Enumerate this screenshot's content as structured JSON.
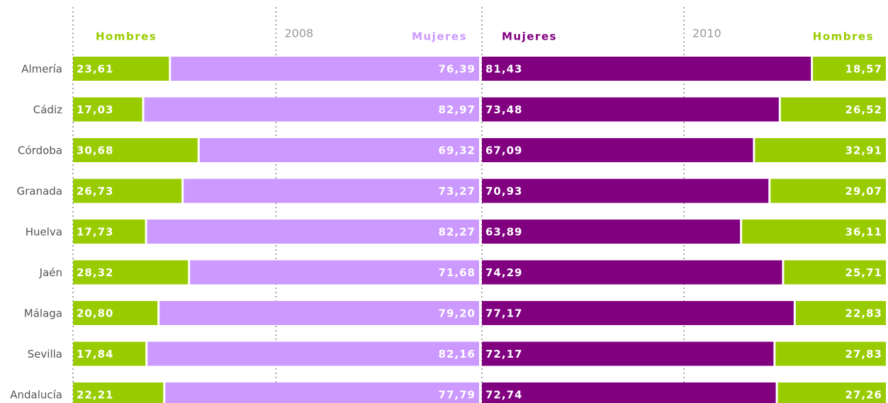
{
  "chart_data": {
    "type": "bar",
    "stacked": true,
    "categories": [
      "Almería",
      "Cádiz",
      "Córdoba",
      "Granada",
      "Huelva",
      "Jaén",
      "Málaga",
      "Sevilla",
      "Andalucía"
    ],
    "xlim": [
      0,
      100
    ],
    "xticks": [
      0,
      50
    ],
    "panels": [
      {
        "title": "2008",
        "series": [
          {
            "name": "Hombres",
            "color": "#99cc00",
            "values": [
              23.61,
              17.03,
              30.68,
              26.73,
              17.73,
              28.32,
              20.8,
              17.84,
              22.21
            ],
            "value_labels": [
              "23,61",
              "17,03",
              "30,68",
              "26,73",
              "17,73",
              "28,32",
              "20,80",
              "17,84",
              "22,21"
            ]
          },
          {
            "name": "Mujeres",
            "color": "#cc99ff",
            "values": [
              76.39,
              82.97,
              69.32,
              73.27,
              82.27,
              71.68,
              79.2,
              82.16,
              77.79
            ],
            "value_labels": [
              "76,39",
              "82,97",
              "69,32",
              "73,27",
              "82,27",
              "71,68",
              "79,20",
              "82,16",
              "77,79"
            ]
          }
        ]
      },
      {
        "title": "2010",
        "series": [
          {
            "name": "Mujeres",
            "color": "#800080",
            "values": [
              81.43,
              73.48,
              67.09,
              70.93,
              63.89,
              74.29,
              77.17,
              72.17,
              72.74
            ],
            "value_labels": [
              "81,43",
              "73,48",
              "67,09",
              "70,93",
              "63,89",
              "74,29",
              "77,17",
              "72,17",
              "72,74"
            ]
          },
          {
            "name": "Hombres",
            "color": "#99cc00",
            "values": [
              18.57,
              26.52,
              32.91,
              29.07,
              36.11,
              25.71,
              22.83,
              27.83,
              27.26
            ],
            "value_labels": [
              "18,57",
              "26,52",
              "32,91",
              "29,07",
              "36,11",
              "25,71",
              "22,83",
              "27,83",
              "27,26"
            ]
          }
        ]
      }
    ]
  }
}
